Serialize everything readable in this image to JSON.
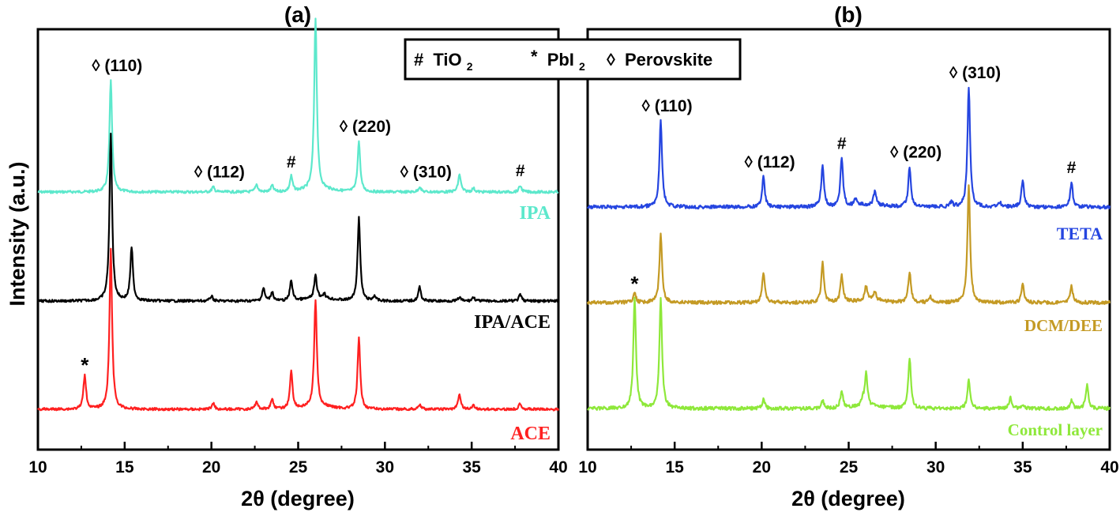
{
  "figure": {
    "ylabel": "Intensity (a.u.)",
    "legend": {
      "items": [
        {
          "symbol": "#",
          "name": "TiO",
          "sub": "2"
        },
        {
          "symbol": "*",
          "name": "PbI",
          "sub": "2"
        },
        {
          "symbol": "◊",
          "name": "Perovskite",
          "sub": ""
        }
      ]
    }
  },
  "chart_data": [
    {
      "type": "line",
      "panel_label": "(a)",
      "title": "(a)",
      "xlabel": "2θ (degree)",
      "ylabel": "Intensity (a.u.)",
      "xlim": [
        10,
        40
      ],
      "xticks": [
        "10",
        "15",
        "20",
        "25",
        "30",
        "35",
        "40"
      ],
      "series": [
        {
          "name": "IPA",
          "color": "#5de8cc",
          "baseline_rank": 2,
          "peaks": [
            {
              "x": 14.2,
              "h": 0.88
            },
            {
              "x": 20.1,
              "h": 0.04
            },
            {
              "x": 22.6,
              "h": 0.06
            },
            {
              "x": 23.5,
              "h": 0.05
            },
            {
              "x": 24.6,
              "h": 0.12
            },
            {
              "x": 26.0,
              "h": 1.36
            },
            {
              "x": 28.5,
              "h": 0.4
            },
            {
              "x": 32.0,
              "h": 0.04
            },
            {
              "x": 34.3,
              "h": 0.14
            },
            {
              "x": 35.1,
              "h": 0.03
            },
            {
              "x": 37.8,
              "h": 0.05
            }
          ]
        },
        {
          "name": "IPA/ACE",
          "color": "#000000",
          "baseline_rank": 1,
          "peaks": [
            {
              "x": 14.2,
              "h": 1.32
            },
            {
              "x": 15.4,
              "h": 0.42
            },
            {
              "x": 20.0,
              "h": 0.04
            },
            {
              "x": 23.0,
              "h": 0.1
            },
            {
              "x": 23.5,
              "h": 0.07
            },
            {
              "x": 24.6,
              "h": 0.16
            },
            {
              "x": 26.0,
              "h": 0.18
            },
            {
              "x": 26.5,
              "h": 0.04
            },
            {
              "x": 28.5,
              "h": 0.66
            },
            {
              "x": 29.4,
              "h": 0.04
            },
            {
              "x": 32.0,
              "h": 0.11
            },
            {
              "x": 34.3,
              "h": 0.03
            },
            {
              "x": 35.1,
              "h": 0.03
            },
            {
              "x": 37.8,
              "h": 0.05
            }
          ]
        },
        {
          "name": "ACE",
          "color": "#ff2020",
          "baseline_rank": 0,
          "peaks": [
            {
              "x": 12.7,
              "h": 0.27
            },
            {
              "x": 14.2,
              "h": 1.26
            },
            {
              "x": 20.1,
              "h": 0.05
            },
            {
              "x": 22.6,
              "h": 0.06
            },
            {
              "x": 23.5,
              "h": 0.08
            },
            {
              "x": 24.6,
              "h": 0.3
            },
            {
              "x": 26.0,
              "h": 0.85
            },
            {
              "x": 28.5,
              "h": 0.56
            },
            {
              "x": 32.0,
              "h": 0.04
            },
            {
              "x": 34.3,
              "h": 0.12
            },
            {
              "x": 35.1,
              "h": 0.03
            },
            {
              "x": 37.8,
              "h": 0.05
            }
          ]
        }
      ],
      "annotations": [
        {
          "label": "◊ (110)",
          "x": 14.2,
          "series": "IPA",
          "h": 0.88
        },
        {
          "label": "◊ (112)",
          "x": 20.1,
          "series": "IPA",
          "h": 0.04
        },
        {
          "label": "#",
          "x": 24.6,
          "series": "IPA",
          "h": 0.12
        },
        {
          "label": "◊ (220)",
          "x": 28.5,
          "series": "IPA",
          "h": 0.4
        },
        {
          "label": "◊ (310)",
          "x": 32.0,
          "series": "IPA",
          "h": 0.04
        },
        {
          "label": "#",
          "x": 37.8,
          "series": "IPA",
          "h": 0.05
        },
        {
          "label": "*",
          "x": 12.7,
          "series": "ACE",
          "h": 0.27
        }
      ]
    },
    {
      "type": "line",
      "panel_label": "(b)",
      "title": "(b)",
      "xlabel": "2θ (degree)",
      "ylabel": "",
      "xlim": [
        10,
        40
      ],
      "xticks": [
        "10",
        "15",
        "20",
        "25",
        "30",
        "35",
        "40"
      ],
      "series": [
        {
          "name": "TETA",
          "color": "#2545e0",
          "baseline_rank": 2,
          "peaks": [
            {
              "x": 14.2,
              "h": 0.78
            },
            {
              "x": 20.1,
              "h": 0.27
            },
            {
              "x": 23.5,
              "h": 0.38
            },
            {
              "x": 24.6,
              "h": 0.44
            },
            {
              "x": 25.4,
              "h": 0.06
            },
            {
              "x": 26.5,
              "h": 0.12
            },
            {
              "x": 28.5,
              "h": 0.36
            },
            {
              "x": 30.9,
              "h": 0.04
            },
            {
              "x": 31.9,
              "h": 1.08
            },
            {
              "x": 33.7,
              "h": 0.04
            },
            {
              "x": 35.0,
              "h": 0.24
            },
            {
              "x": 37.8,
              "h": 0.22
            }
          ]
        },
        {
          "name": "DCM/DEE",
          "color": "#c49a24",
          "baseline_rank": 1,
          "peaks": [
            {
              "x": 12.7,
              "h": 0.08
            },
            {
              "x": 14.2,
              "h": 0.62
            },
            {
              "x": 20.1,
              "h": 0.27
            },
            {
              "x": 23.5,
              "h": 0.36
            },
            {
              "x": 24.6,
              "h": 0.24
            },
            {
              "x": 26.0,
              "h": 0.13
            },
            {
              "x": 26.5,
              "h": 0.08
            },
            {
              "x": 28.5,
              "h": 0.28
            },
            {
              "x": 29.7,
              "h": 0.05
            },
            {
              "x": 31.9,
              "h": 1.06
            },
            {
              "x": 35.0,
              "h": 0.16
            },
            {
              "x": 37.8,
              "h": 0.15
            }
          ]
        },
        {
          "name": "Control layer",
          "color": "#8ee83a",
          "baseline_rank": 0,
          "peaks": [
            {
              "x": 12.7,
              "h": 1.0
            },
            {
              "x": 14.2,
              "h": 0.99
            },
            {
              "x": 20.1,
              "h": 0.08
            },
            {
              "x": 23.5,
              "h": 0.07
            },
            {
              "x": 24.6,
              "h": 0.16
            },
            {
              "x": 25.8,
              "h": 0.06
            },
            {
              "x": 26.0,
              "h": 0.3
            },
            {
              "x": 28.5,
              "h": 0.46
            },
            {
              "x": 31.9,
              "h": 0.26
            },
            {
              "x": 34.3,
              "h": 0.1
            },
            {
              "x": 35.0,
              "h": 0.03
            },
            {
              "x": 37.8,
              "h": 0.07
            },
            {
              "x": 38.7,
              "h": 0.22
            }
          ]
        }
      ],
      "annotations": [
        {
          "label": "◊ (110)",
          "x": 14.2,
          "series": "TETA",
          "h": 0.78
        },
        {
          "label": "◊ (112)",
          "x": 20.1,
          "series": "TETA",
          "h": 0.27
        },
        {
          "label": "#",
          "x": 24.6,
          "series": "TETA",
          "h": 0.44
        },
        {
          "label": "◊ (220)",
          "x": 28.5,
          "series": "TETA",
          "h": 0.36
        },
        {
          "label": "◊ (310)",
          "x": 31.9,
          "series": "TETA",
          "h": 1.08
        },
        {
          "label": "#",
          "x": 37.8,
          "series": "TETA",
          "h": 0.22
        },
        {
          "label": "*",
          "x": 12.7,
          "series": "DCM/DEE",
          "h": 0.08
        }
      ]
    }
  ]
}
